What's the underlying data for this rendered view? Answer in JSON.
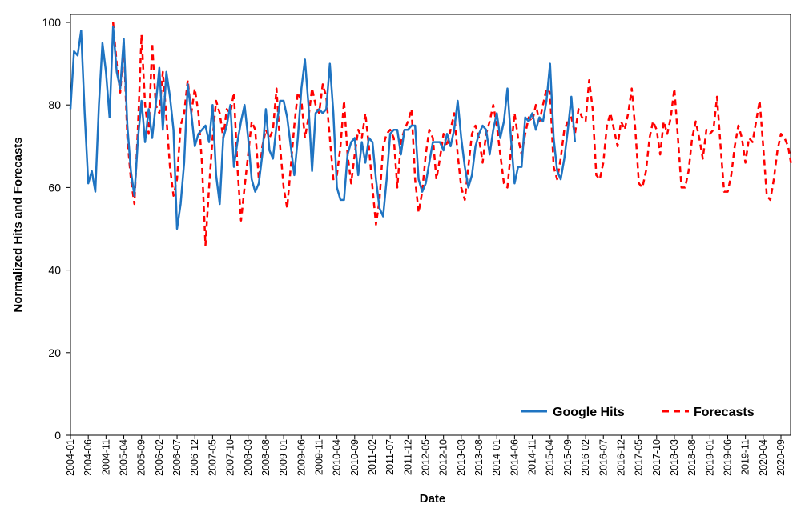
{
  "chart_data": {
    "type": "line",
    "xlabel": "Date",
    "ylabel": "Normalized Hits and Forecasts",
    "ylim": [
      0,
      100
    ],
    "yticks": [
      0,
      20,
      40,
      60,
      80,
      100
    ],
    "x_start": "2004-01",
    "x_end": "2020-12",
    "xtick_labels": [
      "2004-01",
      "2004-06",
      "2004-11",
      "2005-04",
      "2005-09",
      "2006-02",
      "2006-07",
      "2006-12",
      "2007-05",
      "2007-10",
      "2008-03",
      "2008-08",
      "2009-01",
      "2009-06",
      "2009-11",
      "2010-04",
      "2010-09",
      "2011-02",
      "2011-07",
      "2011-12",
      "2012-05",
      "2012-10",
      "2013-03",
      "2013-08",
      "2014-01",
      "2014-06",
      "2014-11",
      "2015-04",
      "2015-09",
      "2016-02",
      "2016-07",
      "2016-12",
      "2017-05",
      "2017-10",
      "2018-03",
      "2018-08",
      "2019-01",
      "2019-06",
      "2019-11",
      "2020-04",
      "2020-09"
    ],
    "grid": false,
    "legend_position": "bottom-right",
    "series": [
      {
        "name": "Google Hits",
        "color": "#1f74c2",
        "style": "solid",
        "start": "2004-01",
        "values": [
          79,
          93,
          92,
          98,
          78,
          61,
          64,
          59,
          80,
          95,
          88,
          77,
          99,
          88,
          84,
          96,
          75,
          64,
          58,
          72,
          81,
          71,
          79,
          72,
          80,
          89,
          74,
          88,
          82,
          74,
          50,
          56,
          66,
          85,
          78,
          70,
          73,
          74,
          75,
          71,
          80,
          63,
          56,
          72,
          75,
          80,
          65,
          71,
          76,
          80,
          72,
          62,
          59,
          61,
          68,
          79,
          69,
          67,
          75,
          81,
          81,
          77,
          70,
          63,
          72,
          84,
          91,
          80,
          64,
          78,
          79,
          78,
          79,
          90,
          78,
          60,
          57,
          57,
          68,
          71,
          72,
          63,
          71,
          66,
          72,
          71,
          62,
          55,
          53,
          62,
          73,
          74,
          74,
          68,
          74,
          74,
          75,
          75,
          62,
          59,
          61,
          66,
          71,
          71,
          71,
          69,
          73,
          70,
          74,
          81,
          72,
          65,
          60,
          63,
          70,
          73,
          75,
          74,
          68,
          74,
          78,
          72,
          76,
          84,
          72,
          61,
          65,
          65,
          77,
          76,
          78,
          74,
          77,
          76,
          81,
          90,
          72,
          64,
          62,
          67,
          74,
          82,
          71
        ]
      },
      {
        "name": "Forecasts",
        "color": "#ff0000",
        "style": "dashed",
        "start": "2005-01",
        "values": [
          100,
          90,
          83,
          95,
          72,
          62,
          56,
          75,
          97,
          80,
          73,
          95,
          80,
          78,
          88,
          77,
          65,
          58,
          62,
          75,
          78,
          86,
          78,
          84,
          78,
          66,
          46,
          60,
          72,
          81,
          78,
          72,
          79,
          78,
          83,
          65,
          52,
          60,
          68,
          76,
          74,
          62,
          70,
          74,
          72,
          74,
          84,
          70,
          60,
          55,
          65,
          75,
          83,
          81,
          72,
          77,
          84,
          80,
          78,
          85,
          82,
          72,
          62,
          63,
          70,
          81,
          68,
          61,
          68,
          74,
          72,
          78,
          70,
          60,
          51,
          57,
          70,
          73,
          74,
          72,
          60,
          71,
          74,
          76,
          79,
          62,
          54,
          59,
          68,
          74,
          72,
          62,
          67,
          73,
          70,
          74,
          78,
          68,
          60,
          57,
          65,
          73,
          75,
          72,
          66,
          73,
          76,
          80,
          75,
          68,
          61,
          60,
          69,
          78,
          72,
          68,
          73,
          77,
          76,
          80,
          76,
          80,
          84,
          83,
          65,
          62,
          67,
          74,
          76,
          77,
          73,
          79,
          77,
          76,
          86,
          79,
          63,
          62,
          66,
          75,
          78,
          74,
          70,
          76,
          74,
          78,
          84,
          74,
          61,
          60,
          64,
          72,
          76,
          74,
          68,
          76,
          73,
          77,
          84,
          72,
          60,
          60,
          64,
          72,
          76,
          72,
          67,
          74,
          73,
          74,
          82,
          70,
          59,
          59,
          63,
          70,
          75,
          72,
          66,
          72,
          71,
          76,
          81,
          70,
          58,
          57,
          62,
          69,
          73,
          72,
          70,
          65
        ]
      }
    ]
  }
}
